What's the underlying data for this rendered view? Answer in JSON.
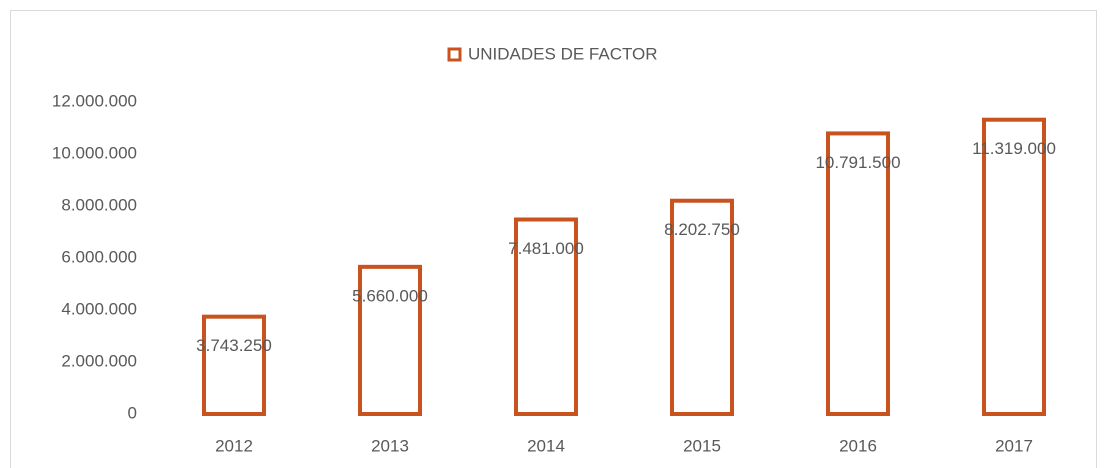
{
  "chart_data": {
    "type": "bar",
    "categories": [
      "2012",
      "2013",
      "2014",
      "2015",
      "2016",
      "2017"
    ],
    "series": [
      {
        "name": "UNIDADES DE FACTOR",
        "color": "#c8531f",
        "values": [
          3743250,
          5660000,
          7481000,
          8202750,
          10791500,
          11319000
        ],
        "value_labels": [
          "3.743.250",
          "5.660.000",
          "7.481.000",
          "8.202.750",
          "10.791.500",
          "11.319.000"
        ]
      }
    ],
    "ylim": [
      0,
      12000000
    ],
    "yticks": [
      {
        "value": 0,
        "label": "0"
      },
      {
        "value": 2000000,
        "label": "2.000.000"
      },
      {
        "value": 4000000,
        "label": "4.000.000"
      },
      {
        "value": 6000000,
        "label": "6.000.000"
      },
      {
        "value": 8000000,
        "label": "8.000.000"
      },
      {
        "value": 10000000,
        "label": "10.000.000"
      },
      {
        "value": 12000000,
        "label": "12.000.000"
      }
    ],
    "legend": "top",
    "grid": false
  }
}
